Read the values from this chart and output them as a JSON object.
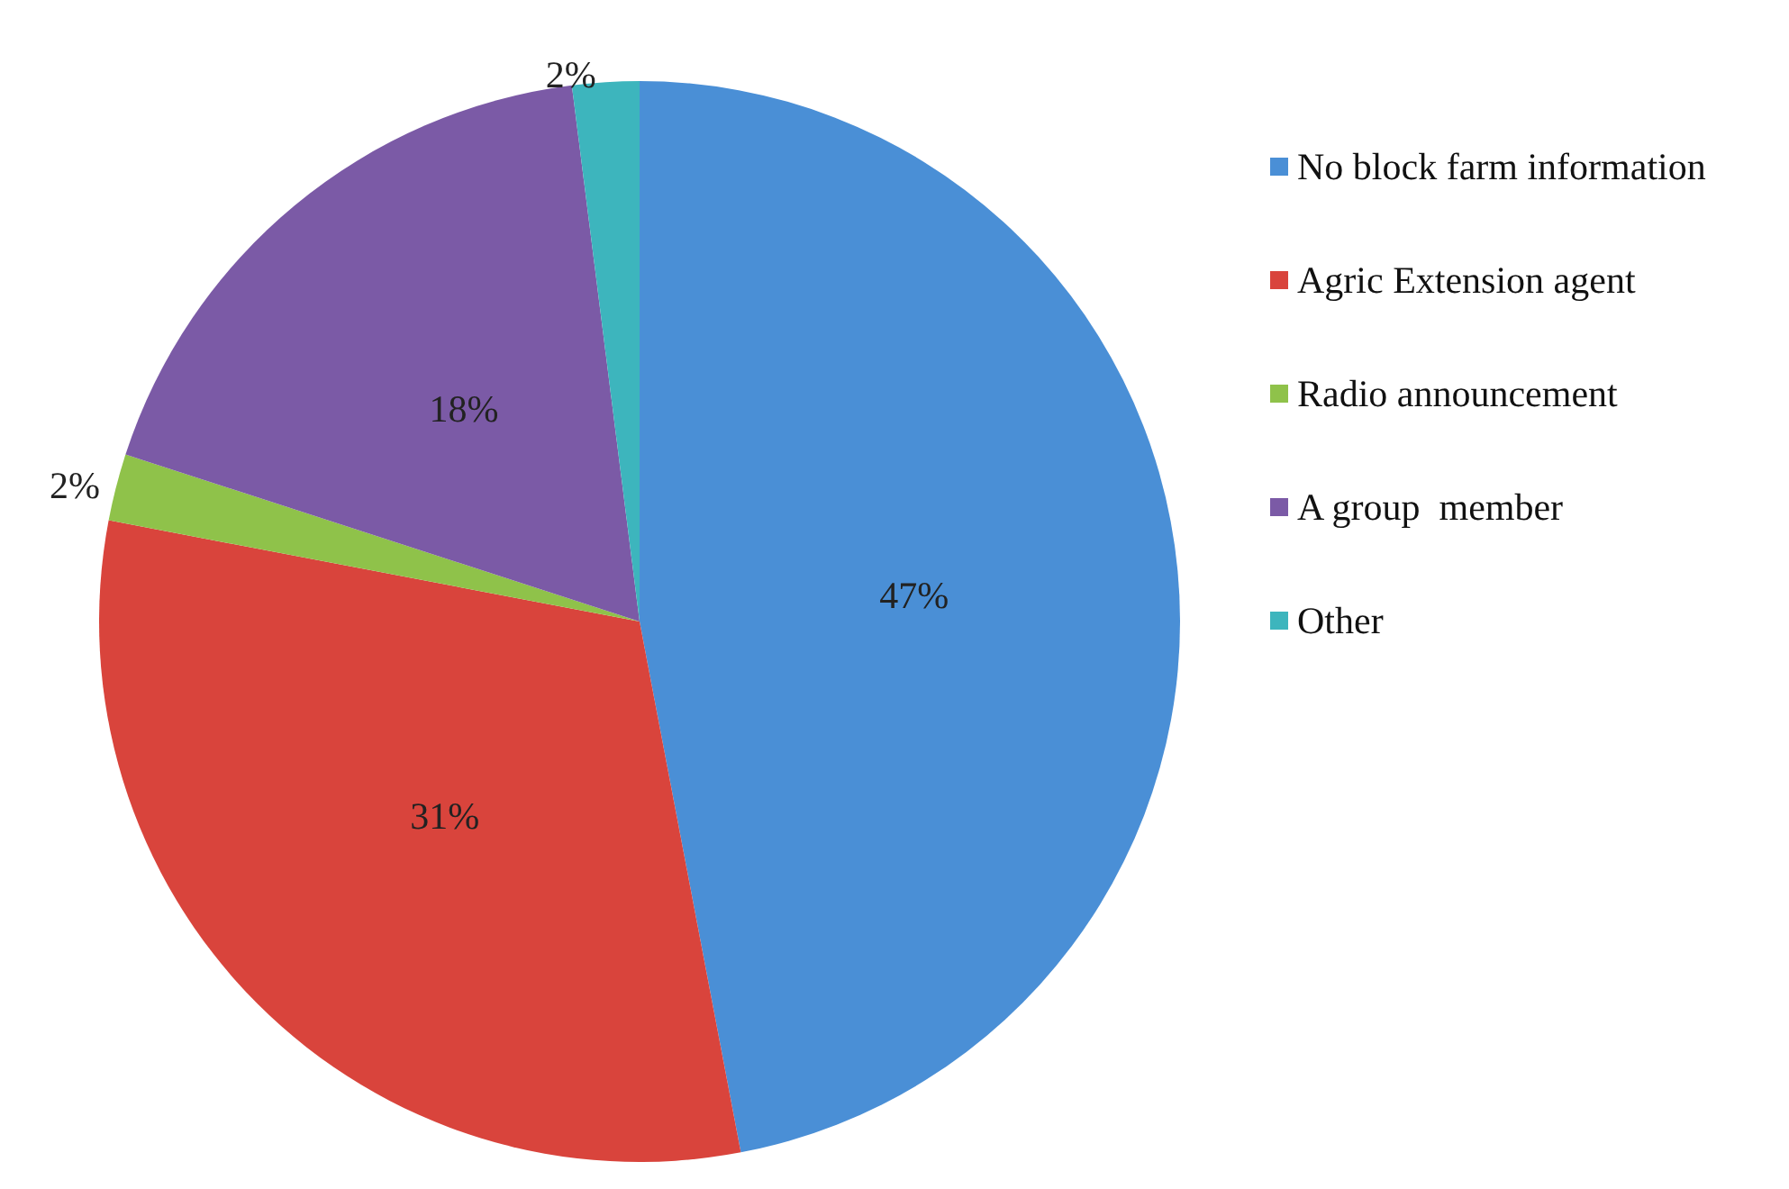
{
  "chart_data": {
    "type": "pie",
    "categories": [
      "No block farm information",
      "Agric Extension agent",
      "Radio announcement",
      "A group  member",
      "Other"
    ],
    "values": [
      47,
      31,
      2,
      18,
      2
    ],
    "colors": [
      "#4a8fd6",
      "#d9443c",
      "#8fc24a",
      "#7b5aa6",
      "#3db5bd"
    ],
    "value_labels": [
      "47%",
      "31%",
      "2%",
      "18%",
      "2%"
    ],
    "legend": "right"
  }
}
